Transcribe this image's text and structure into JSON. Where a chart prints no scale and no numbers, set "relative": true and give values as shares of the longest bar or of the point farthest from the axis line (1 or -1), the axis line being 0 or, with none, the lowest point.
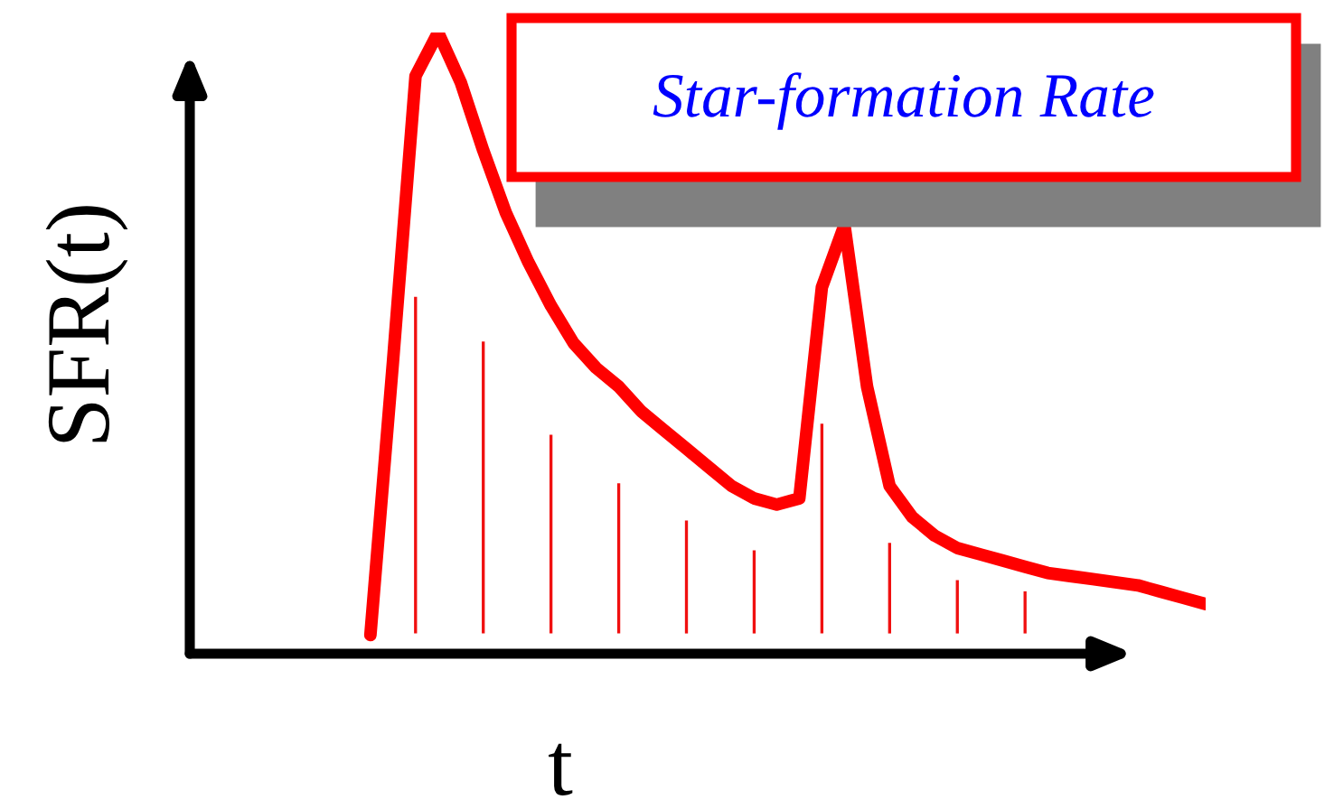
{
  "chart_data": {
    "type": "line",
    "relative": true,
    "title": "Star-formation Rate",
    "xlabel": "t",
    "ylabel": "SFR(t)",
    "marker": "none",
    "line_style": "solid",
    "categories": [
      null,
      null,
      null,
      null,
      null,
      null,
      null,
      null,
      null,
      null,
      null,
      null,
      null,
      null,
      null,
      null,
      null,
      null,
      null,
      null,
      null,
      null,
      null,
      null,
      null,
      null,
      null,
      null,
      null,
      null,
      null,
      null,
      null,
      null,
      null,
      null,
      null,
      null
    ],
    "series": [
      {
        "color": "#ff0000",
        "values": [
          0.03,
          0.47,
          0.93,
          1.0,
          0.92,
          0.81,
          0.71,
          0.63,
          0.56,
          0.5,
          0.46,
          0.43,
          0.39,
          0.36,
          0.33,
          0.3,
          0.27,
          0.25,
          0.24,
          0.25,
          0.59,
          0.69,
          0.43,
          0.27,
          0.22,
          0.19,
          0.17,
          0.16,
          0.15,
          0.14,
          0.13,
          0.125,
          0.12,
          0.115,
          0.11,
          0.1,
          0.09,
          0.08
        ]
      }
    ]
  }
}
